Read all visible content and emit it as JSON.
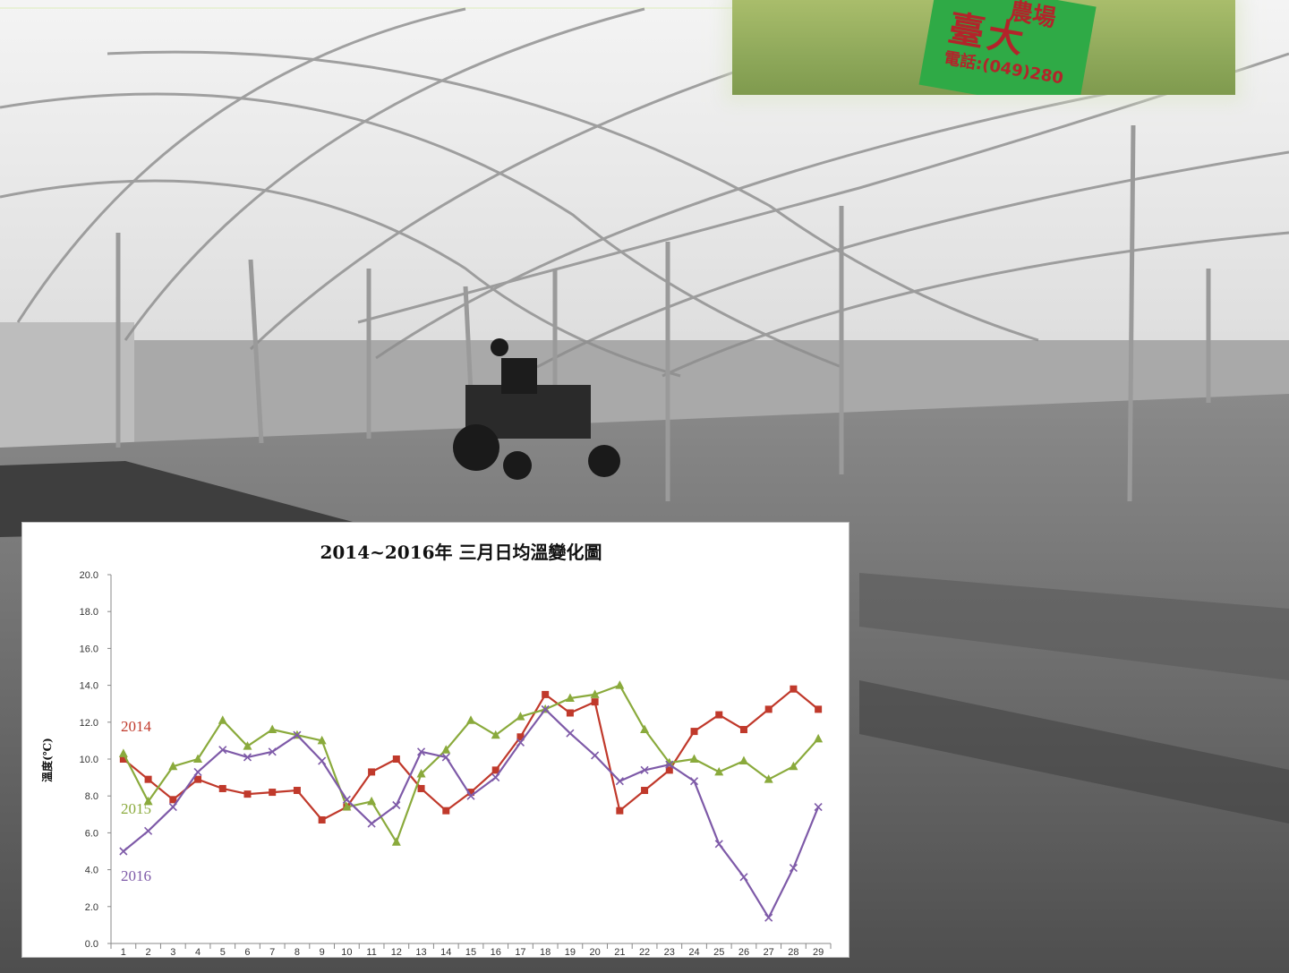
{
  "sign": {
    "line1": "農場",
    "line2": "臺大",
    "tel": "電話:(049)280"
  },
  "chart_data": {
    "type": "line",
    "title": "2014~2016年 三月日均溫變化圖",
    "xlabel": "",
    "ylabel": "溫度(℃)",
    "ylim": [
      0,
      20
    ],
    "yticks": [
      "0.0",
      "2.0",
      "4.0",
      "6.0",
      "8.0",
      "10.0",
      "12.0",
      "14.0",
      "16.0",
      "18.0",
      "20.0"
    ],
    "x": [
      1,
      2,
      3,
      4,
      5,
      6,
      7,
      8,
      9,
      10,
      11,
      12,
      13,
      14,
      15,
      16,
      17,
      18,
      19,
      20,
      21,
      22,
      23,
      24,
      25,
      26,
      27,
      28,
      29
    ],
    "grid": false,
    "legend": "inline-left",
    "series": [
      {
        "name": "2014",
        "color": "#c0392b",
        "marker": "square",
        "values": [
          10.0,
          8.9,
          7.8,
          8.9,
          8.4,
          8.1,
          8.2,
          8.3,
          6.7,
          7.4,
          9.3,
          10.0,
          8.4,
          7.2,
          8.2,
          9.4,
          11.2,
          13.5,
          12.5,
          13.1,
          7.2,
          8.3,
          9.4,
          11.5,
          12.4,
          11.6,
          12.7,
          13.8,
          12.7
        ]
      },
      {
        "name": "2015",
        "color": "#8aaa3c",
        "marker": "triangle",
        "values": [
          10.3,
          7.7,
          9.6,
          10.0,
          12.1,
          10.7,
          11.6,
          11.3,
          11.0,
          7.4,
          7.7,
          5.5,
          9.2,
          10.5,
          12.1,
          11.3,
          12.3,
          12.7,
          13.3,
          13.5,
          14.0,
          11.6,
          9.8,
          10.0,
          9.3,
          9.9,
          8.9,
          9.6,
          11.1
        ]
      },
      {
        "name": "2016",
        "color": "#7e5aa8",
        "marker": "x",
        "values": [
          5.0,
          6.1,
          7.4,
          9.3,
          10.5,
          10.1,
          10.4,
          11.3,
          9.9,
          7.8,
          6.5,
          7.5,
          10.4,
          10.1,
          8.0,
          9.0,
          10.9,
          12.7,
          11.4,
          10.2,
          8.8,
          9.4,
          9.7,
          8.8,
          5.4,
          3.6,
          1.4,
          4.1,
          7.4
        ]
      }
    ]
  }
}
